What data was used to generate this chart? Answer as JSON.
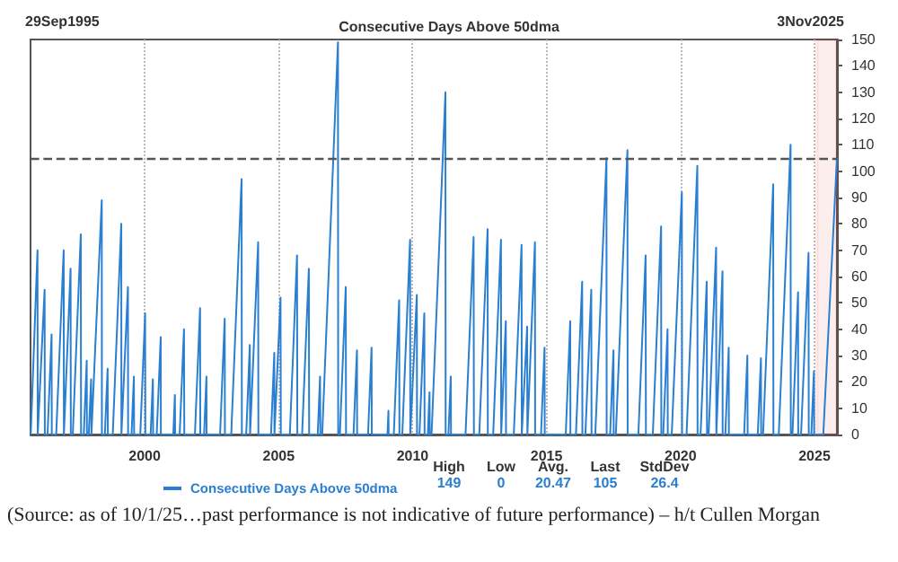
{
  "chart_data": {
    "type": "line",
    "title": "Consecutive Days Above 50dma",
    "x": [
      "1995-10-02",
      "1996-01-02",
      "1996-01-05",
      "1996-01-19",
      "1996-04-08",
      "1996-04-11",
      "1996-05-18",
      "1996-07-12",
      "1996-07-15",
      "1996-09-13",
      "1996-12-24",
      "1996-12-27",
      "1996-12-30",
      "1997-03-28",
      "1997-03-31",
      "1997-04-27",
      "1997-08-14",
      "1997-08-18",
      "1997-09-24",
      "1997-11-03",
      "1997-11-06",
      "1997-12-01",
      "1998-01-02",
      "1998-01-06",
      "1998-01-19",
      "1998-05-27",
      "1998-05-29",
      "1998-07-08",
      "1998-08-15",
      "1998-08-18",
      "1998-10-24",
      "1999-02-17",
      "1999-02-19",
      "1999-02-27",
      "1999-05-19",
      "1999-05-21",
      "1999-07-07",
      "1999-08-08",
      "1999-08-11",
      "1999-11-03",
      "2000-01-08",
      "2000-01-11",
      "2000-03-23",
      "2000-04-23",
      "2000-04-26",
      "2000-06-14",
      "2000-08-08",
      "2000-08-10",
      "2001-01-26",
      "2001-02-17",
      "2001-02-20",
      "2001-04-23",
      "2001-06-21",
      "2001-06-25",
      "2001-11-17",
      "2002-01-26",
      "2002-01-29",
      "2002-03-22",
      "2002-04-23",
      "2002-04-25",
      "2002-10-26",
      "2002-12-28",
      "2002-12-31",
      "2003-03-27",
      "2003-08-15",
      "2003-08-19",
      "2003-10-17",
      "2003-12-05",
      "2003-12-09",
      "2003-12-12",
      "2004-03-28",
      "2004-03-31",
      "2004-09-19",
      "2004-11-03",
      "2004-11-05",
      "2004-11-08",
      "2005-01-27",
      "2005-01-31",
      "2005-06-03",
      "2005-09-09",
      "2005-09-13",
      "2005-11-17",
      "2006-02-17",
      "2006-02-21",
      "2006-06-18",
      "2006-07-20",
      "2006-07-24",
      "2006-08-18",
      "2007-03-21",
      "2007-03-24",
      "2007-04-16",
      "2007-07-05",
      "2007-07-09",
      "2007-10-19",
      "2007-12-05",
      "2007-12-07",
      "2008-05-04",
      "2008-06-21",
      "2008-06-24",
      "2009-01-24",
      "2009-02-06",
      "2009-02-09",
      "2009-04-20",
      "2009-07-02",
      "2009-07-06",
      "2009-08-14",
      "2009-11-28",
      "2009-12-01",
      "2009-12-12",
      "2010-02-28",
      "2010-03-03",
      "2010-04-05",
      "2010-06-10",
      "2010-06-14",
      "2010-07-28",
      "2010-08-20",
      "2010-08-24",
      "2010-09-17",
      "2011-03-25",
      "2011-03-28",
      "2011-05-05",
      "2011-06-06",
      "2011-06-09",
      "2011-12-24",
      "2012-04-12",
      "2012-04-16",
      "2012-06-28",
      "2012-10-20",
      "2012-10-23",
      "2013-01-04",
      "2013-04-20",
      "2013-04-23",
      "2013-04-25",
      "2013-06-25",
      "2013-06-28",
      "2013-10-12",
      "2014-01-26",
      "2014-01-29",
      "2014-02-14",
      "2014-04-12",
      "2014-04-15",
      "2014-04-17",
      "2014-07-27",
      "2014-07-30",
      "2014-10-18",
      "2014-12-05",
      "2014-12-08",
      "2015-09-20",
      "2015-11-20",
      "2015-11-23",
      "2016-02-06",
      "2016-05-01",
      "2016-05-04",
      "2016-06-14",
      "2016-09-02",
      "2016-09-06",
      "2016-10-27",
      "2017-03-28",
      "2017-03-31",
      "2017-05-17",
      "2017-07-02",
      "2017-07-05",
      "2017-08-03",
      "2018-01-08",
      "2018-01-11",
      "2018-06-06",
      "2018-09-13",
      "2018-09-17",
      "2018-12-20",
      "2019-04-12",
      "2019-04-15",
      "2019-05-11",
      "2019-07-09",
      "2019-07-12",
      "2019-09-04",
      "2020-01-20",
      "2020-01-23",
      "2020-03-24",
      "2020-08-18",
      "2020-08-21",
      "2020-10-01",
      "2020-12-24",
      "2020-12-28",
      "2021-01-19",
      "2021-05-01",
      "2021-05-04",
      "2021-05-06",
      "2021-07-27",
      "2021-07-29",
      "2021-09-03",
      "2021-10-20",
      "2021-10-22",
      "2022-05-18",
      "2022-07-01",
      "2022-07-05",
      "2022-11-20",
      "2023-01-02",
      "2023-01-05",
      "2023-01-31",
      "2023-06-18",
      "2023-06-21",
      "2023-09-02",
      "2024-02-10",
      "2024-02-13",
      "2024-03-07",
      "2024-05-22",
      "2024-05-24",
      "2024-07-02",
      "2024-10-12",
      "2024-10-15",
      "2024-11-19",
      "2024-12-24",
      "2024-12-27",
      "2025-05-01",
      "2025-11-03"
    ],
    "series": [
      {
        "name": "Consecutive Days Above 50dma",
        "color": "#2a7fd0",
        "values": [
          0,
          70,
          0,
          0,
          55,
          0,
          0,
          38,
          0,
          0,
          70,
          0,
          0,
          63,
          0,
          0,
          76,
          0,
          0,
          28,
          0,
          0,
          21,
          0,
          0,
          89,
          0,
          0,
          25,
          0,
          0,
          80,
          0,
          0,
          56,
          0,
          0,
          22,
          0,
          0,
          46,
          0,
          0,
          21,
          0,
          0,
          37,
          0,
          0,
          15,
          0,
          0,
          40,
          0,
          0,
          48,
          0,
          0,
          22,
          0,
          0,
          44,
          0,
          0,
          97,
          0,
          0,
          34,
          0,
          0,
          73,
          0,
          0,
          31,
          0,
          0,
          52,
          0,
          0,
          68,
          0,
          0,
          63,
          0,
          0,
          22,
          0,
          0,
          149,
          0,
          0,
          56,
          0,
          0,
          32,
          0,
          0,
          33,
          0,
          0,
          9,
          0,
          0,
          51,
          0,
          0,
          74,
          0,
          0,
          53,
          0,
          0,
          46,
          0,
          0,
          16,
          0,
          0,
          130,
          0,
          0,
          22,
          0,
          0,
          75,
          0,
          0,
          78,
          0,
          0,
          74,
          0,
          0,
          43,
          0,
          0,
          72,
          0,
          0,
          41,
          0,
          0,
          73,
          0,
          0,
          33,
          0,
          0,
          43,
          0,
          0,
          58,
          0,
          0,
          55,
          0,
          0,
          105,
          0,
          0,
          32,
          0,
          0,
          108,
          0,
          0,
          68,
          0,
          0,
          79,
          0,
          0,
          40,
          0,
          0,
          92,
          0,
          0,
          102,
          0,
          0,
          58,
          0,
          0,
          71,
          0,
          0,
          62,
          0,
          0,
          33,
          0,
          0,
          30,
          0,
          0,
          29,
          0,
          0,
          95,
          0,
          0,
          110,
          0,
          0,
          54,
          0,
          0,
          69,
          0,
          0,
          24,
          0,
          0,
          105
        ]
      }
    ],
    "xlim": [
      "1995-09-29",
      "2025-11-03"
    ],
    "xticks": [
      {
        "value": "2000",
        "label": "2000"
      },
      {
        "value": "2005",
        "label": "2005"
      },
      {
        "value": "2010",
        "label": "2010"
      },
      {
        "value": "2015",
        "label": "2015"
      },
      {
        "value": "2020",
        "label": "2020"
      },
      {
        "value": "2025",
        "label": "2025"
      }
    ],
    "ylim": [
      0,
      150
    ],
    "yticks": [
      0,
      10,
      20,
      30,
      40,
      50,
      60,
      70,
      80,
      90,
      100,
      110,
      120,
      130,
      140,
      150
    ],
    "ref_lines": [
      {
        "axis": "y",
        "value": 105,
        "color": "#555555",
        "line_style": "dashed"
      }
    ],
    "bands": [
      {
        "axis": "x",
        "from": "2025-02-01",
        "to": "2025-11-03",
        "color": "#e02020"
      }
    ],
    "grid": "x",
    "legend": "bottom",
    "marker": "none",
    "annotations": [
      "29Sep1995",
      "3Nov2025",
      "High",
      "Low",
      "Avg.",
      "Last",
      "StdDev",
      "149",
      "0",
      "20.47",
      "105",
      "26.4",
      "(Source: as of 10/1/25…past performance is not indicative of future performance) – h/t Cullen Morgan"
    ]
  }
}
